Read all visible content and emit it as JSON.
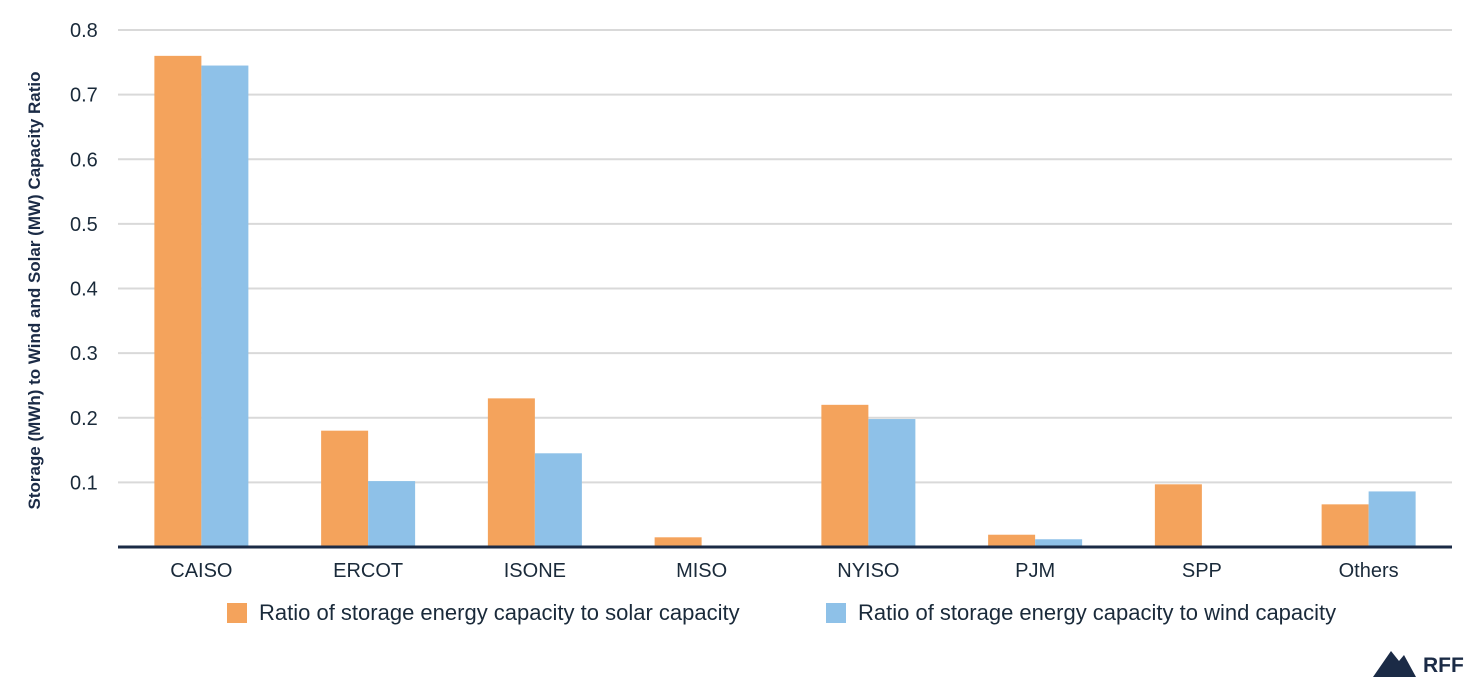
{
  "chart_data": {
    "type": "bar",
    "categories": [
      "CAISO",
      "ERCOT",
      "ISONE",
      "MISO",
      "NYISO",
      "PJM",
      "SPP",
      "Others"
    ],
    "series": [
      {
        "name": "Ratio of storage energy capacity to solar capacity",
        "color": "#f4a35c",
        "values": [
          0.76,
          0.18,
          0.23,
          0.015,
          0.22,
          0.019,
          0.097,
          0.066
        ]
      },
      {
        "name": "Ratio of storage energy capacity to wind capacity",
        "color": "#8ec1e8",
        "values": [
          0.745,
          0.102,
          0.145,
          0.002,
          0.198,
          0.012,
          0.0,
          0.086
        ]
      }
    ],
    "ylabel": "Storage (MWh) to Wind and Solar (MW) Capacity Ratio",
    "xlabel": "",
    "ylim": [
      0,
      0.8
    ],
    "yticks": [
      0.1,
      0.2,
      0.3,
      0.4,
      0.5,
      0.6,
      0.7,
      0.8
    ],
    "ytick_labels": [
      "0.1",
      "0.2",
      "0.3",
      "0.4",
      "0.5",
      "0.6",
      "0.7",
      "0.8"
    ],
    "grid": true,
    "legend_position": "bottom"
  },
  "logo": {
    "text": "RFF",
    "icon": "mountain-icon"
  },
  "colors": {
    "axis": "#1b2b46",
    "grid": "#d9d9d9"
  }
}
